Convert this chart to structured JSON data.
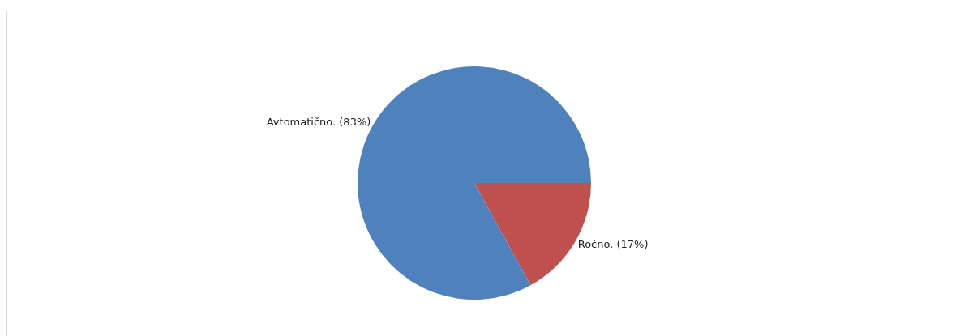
{
  "chart_data": {
    "type": "pie",
    "categories": [
      "Ročno.",
      "Avtomatično."
    ],
    "values": [
      17,
      83
    ],
    "value_labels": [
      "(17%)",
      "(83%)"
    ],
    "colors": [
      "#c0504d",
      "#4f81bd"
    ],
    "legend": false
  }
}
